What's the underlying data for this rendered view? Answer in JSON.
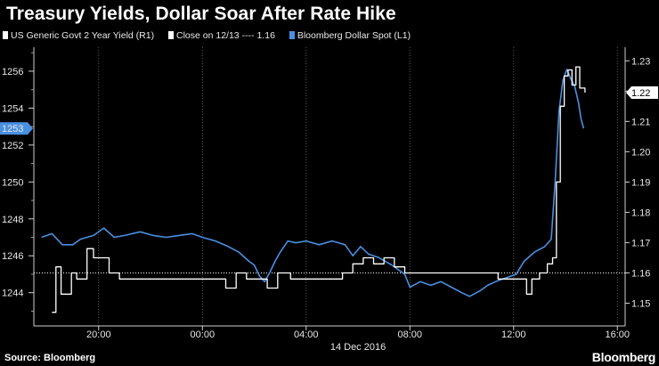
{
  "header": {
    "title": "Treasury Yields, Dollar Soar After Rate Hike"
  },
  "legend": [
    {
      "label": "US Generic Govt 2 Year Yield  (R1)",
      "color": "#ffffff"
    },
    {
      "label": "Close on 12/13 ---- 1.16",
      "color": "#ffffff"
    },
    {
      "label": "Bloomberg Dollar Spot  (L1)",
      "color": "#4a90e2"
    }
  ],
  "footer": {
    "source": "Source: Bloomberg",
    "brand": "Bloomberg"
  },
  "chart_data": {
    "type": "line",
    "title": "Treasury Yields, Dollar Soar After Rate Hike",
    "x_axis": {
      "ticks": [
        "20:00",
        "00:00",
        "04:00",
        "08:00",
        "12:00",
        "16:00"
      ],
      "date_label": "14 Dec 2016",
      "range_hours": [
        17.5,
        40.3
      ]
    },
    "left_axis": {
      "ticks": [
        1244,
        1246,
        1248,
        1250,
        1252,
        1254,
        1256
      ],
      "range": [
        1242.2,
        1257.3
      ],
      "current_label": "1253",
      "current_value": 1252.9,
      "current_color": "#4a90e2"
    },
    "right_axis": {
      "ticks": [
        1.15,
        1.16,
        1.17,
        1.18,
        1.19,
        1.2,
        1.21,
        1.22,
        1.23
      ],
      "range": [
        1.1425,
        1.2345
      ],
      "current_label": "1.22",
      "current_value": 1.2195
    },
    "reference_line": {
      "value": 1.16,
      "axis": "right",
      "style": "dotted",
      "color": "#ffffff"
    },
    "series": [
      {
        "name": "Bloomberg Dollar Spot",
        "axis": "left",
        "color": "#4a90e2",
        "points": [
          [
            17.8,
            1247.0
          ],
          [
            18.2,
            1247.2
          ],
          [
            18.6,
            1246.6
          ],
          [
            19.0,
            1246.6
          ],
          [
            19.3,
            1246.9
          ],
          [
            19.8,
            1247.1
          ],
          [
            20.2,
            1247.5
          ],
          [
            20.6,
            1247.0
          ],
          [
            21.0,
            1247.1
          ],
          [
            21.6,
            1247.3
          ],
          [
            22.1,
            1247.1
          ],
          [
            22.6,
            1247.0
          ],
          [
            23.1,
            1247.1
          ],
          [
            23.6,
            1247.2
          ],
          [
            24.0,
            1247.0
          ],
          [
            24.5,
            1246.8
          ],
          [
            25.0,
            1246.5
          ],
          [
            25.4,
            1246.2
          ],
          [
            25.8,
            1245.7
          ],
          [
            26.0,
            1245.5
          ],
          [
            26.2,
            1244.9
          ],
          [
            26.4,
            1244.6
          ],
          [
            26.6,
            1245.1
          ],
          [
            26.8,
            1245.7
          ],
          [
            27.0,
            1246.2
          ],
          [
            27.3,
            1246.8
          ],
          [
            27.6,
            1246.7
          ],
          [
            28.0,
            1246.8
          ],
          [
            28.5,
            1246.6
          ],
          [
            29.0,
            1246.8
          ],
          [
            29.5,
            1246.6
          ],
          [
            29.8,
            1246.0
          ],
          [
            30.1,
            1246.5
          ],
          [
            30.4,
            1246.1
          ],
          [
            30.8,
            1245.9
          ],
          [
            31.3,
            1245.5
          ],
          [
            31.8,
            1245.0
          ],
          [
            32.0,
            1244.3
          ],
          [
            32.4,
            1244.6
          ],
          [
            32.8,
            1244.4
          ],
          [
            33.2,
            1244.6
          ],
          [
            33.6,
            1244.3
          ],
          [
            34.0,
            1244.0
          ],
          [
            34.3,
            1243.8
          ],
          [
            34.7,
            1244.1
          ],
          [
            35.0,
            1244.4
          ],
          [
            35.3,
            1244.6
          ],
          [
            35.7,
            1244.8
          ],
          [
            36.1,
            1245.0
          ],
          [
            36.4,
            1245.7
          ],
          [
            36.8,
            1246.2
          ],
          [
            37.2,
            1246.5
          ],
          [
            37.45,
            1246.9
          ],
          [
            37.6,
            1250.0
          ],
          [
            37.75,
            1253.8
          ],
          [
            37.9,
            1255.5
          ],
          [
            38.05,
            1256.1
          ],
          [
            38.2,
            1255.6
          ],
          [
            38.35,
            1255.2
          ],
          [
            38.5,
            1254.3
          ],
          [
            38.6,
            1253.4
          ],
          [
            38.7,
            1252.9
          ]
        ]
      },
      {
        "name": "US Generic Govt 2 Year Yield",
        "axis": "right",
        "color": "#ffffff",
        "points": [
          [
            18.2,
            1.147
          ],
          [
            18.35,
            1.162
          ],
          [
            18.55,
            1.153
          ],
          [
            18.8,
            1.153
          ],
          [
            18.95,
            1.16
          ],
          [
            19.15,
            1.158
          ],
          [
            19.4,
            1.158
          ],
          [
            19.55,
            1.168
          ],
          [
            19.8,
            1.165
          ],
          [
            20.1,
            1.165
          ],
          [
            20.4,
            1.16
          ],
          [
            20.6,
            1.16
          ],
          [
            20.8,
            1.158
          ],
          [
            21.0,
            1.158
          ],
          [
            21.4,
            1.158
          ],
          [
            22.1,
            1.158
          ],
          [
            22.8,
            1.158
          ],
          [
            23.5,
            1.158
          ],
          [
            24.3,
            1.158
          ],
          [
            24.9,
            1.155
          ],
          [
            25.3,
            1.16
          ],
          [
            25.7,
            1.158
          ],
          [
            26.1,
            1.158
          ],
          [
            26.5,
            1.155
          ],
          [
            26.9,
            1.16
          ],
          [
            27.4,
            1.158
          ],
          [
            27.8,
            1.158
          ],
          [
            28.2,
            1.158
          ],
          [
            28.6,
            1.158
          ],
          [
            29.0,
            1.158
          ],
          [
            29.4,
            1.16
          ],
          [
            29.8,
            1.163
          ],
          [
            30.2,
            1.165
          ],
          [
            30.6,
            1.163
          ],
          [
            31.0,
            1.165
          ],
          [
            31.4,
            1.162
          ],
          [
            31.8,
            1.16
          ],
          [
            32.2,
            1.16
          ],
          [
            32.6,
            1.16
          ],
          [
            33.0,
            1.16
          ],
          [
            33.5,
            1.16
          ],
          [
            34.0,
            1.16
          ],
          [
            34.5,
            1.16
          ],
          [
            35.0,
            1.16
          ],
          [
            35.4,
            1.158
          ],
          [
            35.8,
            1.158
          ],
          [
            36.2,
            1.158
          ],
          [
            36.5,
            1.153
          ],
          [
            36.7,
            1.158
          ],
          [
            37.0,
            1.16
          ],
          [
            37.3,
            1.163
          ],
          [
            37.5,
            1.165
          ],
          [
            37.65,
            1.19
          ],
          [
            37.8,
            1.215
          ],
          [
            37.95,
            1.225
          ],
          [
            38.1,
            1.227
          ],
          [
            38.25,
            1.222
          ],
          [
            38.4,
            1.228
          ],
          [
            38.55,
            1.221
          ],
          [
            38.75,
            1.2195
          ]
        ]
      }
    ]
  }
}
